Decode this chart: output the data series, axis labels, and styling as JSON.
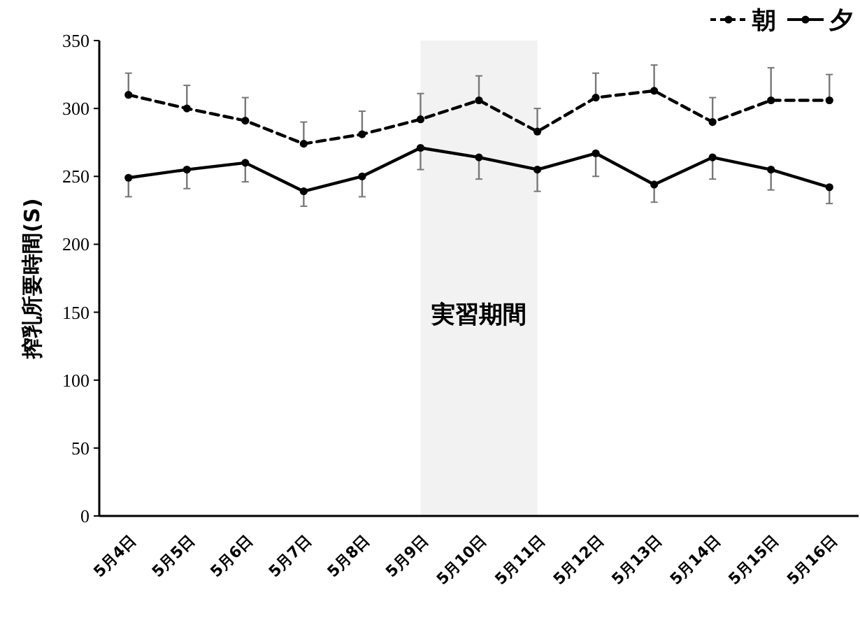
{
  "chart_data": {
    "type": "line",
    "ylabel": "搾乳所要時間(S)",
    "categories": [
      "5月4日",
      "5月5日",
      "5月6日",
      "5月7日",
      "5月8日",
      "5月9日",
      "5月10日",
      "5月11日",
      "5月12日",
      "5月13日",
      "5月14日",
      "5月15日",
      "5月16日"
    ],
    "series": [
      {
        "name": "朝",
        "color": "#000000",
        "line_style": "dashed",
        "values": [
          310,
          300,
          291,
          274,
          281,
          292,
          306,
          283,
          308,
          313,
          290,
          306,
          306
        ],
        "errors": [
          [
            310,
            326
          ],
          [
            300,
            317
          ],
          [
            291,
            308
          ],
          [
            274,
            290
          ],
          [
            281,
            298
          ],
          [
            292,
            311
          ],
          [
            306,
            324
          ],
          [
            283,
            300
          ],
          [
            308,
            326
          ],
          [
            313,
            332
          ],
          [
            290,
            308
          ],
          [
            306,
            330
          ],
          [
            306,
            325
          ]
        ]
      },
      {
        "name": "夕",
        "color": "#000000",
        "line_style": "solid",
        "values": [
          249,
          255,
          260,
          239,
          250,
          271,
          264,
          255,
          267,
          244,
          264,
          255,
          242
        ],
        "errors": [
          [
            235,
            249
          ],
          [
            241,
            255
          ],
          [
            246,
            260
          ],
          [
            228,
            239
          ],
          [
            235,
            250
          ],
          [
            255,
            271
          ],
          [
            248,
            264
          ],
          [
            239,
            255
          ],
          [
            250,
            267
          ],
          [
            231,
            244
          ],
          [
            248,
            264
          ],
          [
            240,
            255
          ],
          [
            230,
            242
          ]
        ]
      }
    ],
    "ylim": [
      0,
      350
    ],
    "yticks": [
      0,
      50,
      100,
      150,
      200,
      250,
      300,
      350
    ],
    "bands": [
      {
        "axis": "x",
        "from": "5月9日",
        "to": "5月11日",
        "label": "実習期間",
        "color": "#f2f2f2"
      }
    ],
    "marker": "circle",
    "grid": false,
    "legend": "top right"
  }
}
